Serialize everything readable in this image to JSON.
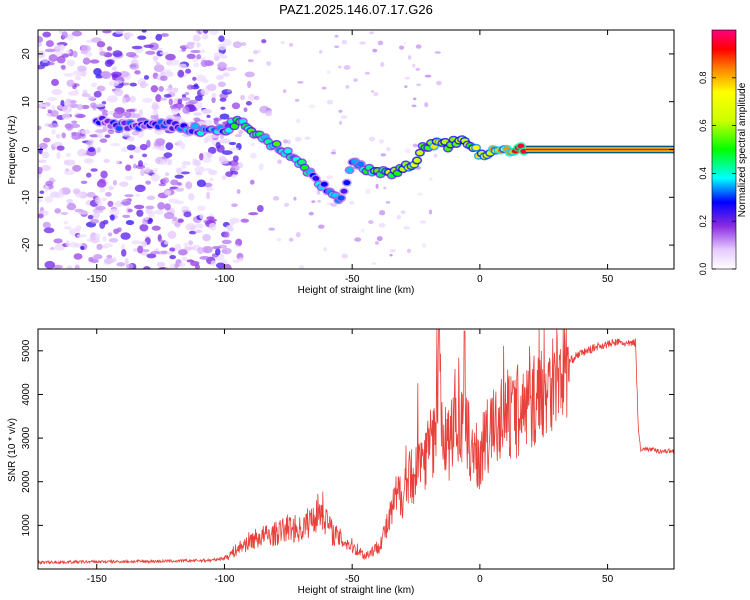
{
  "title": "PAZ1.2025.146.07.17.G26",
  "chart_data": [
    {
      "type": "heatmap",
      "xlabel": "Height of straight line (km)",
      "ylabel": "Frequency (Hz)",
      "xlim": [
        -173,
        76
      ],
      "ylim": [
        -25,
        25
      ],
      "xticks": [
        -150,
        -100,
        -50,
        0,
        50
      ],
      "yticks": [
        -20,
        -10,
        0,
        10,
        20
      ],
      "colorbar": {
        "label": "Normalized spectral amplitude",
        "range": [
          0,
          1
        ],
        "ticks": [
          0.0,
          0.2,
          0.4,
          0.6,
          0.8
        ],
        "tick_labels": [
          "0.0",
          "0.2",
          "0.4",
          "0.6",
          "0.8"
        ]
      },
      "ridge": [
        [
          -150,
          6,
          0.2
        ],
        [
          -140,
          5,
          0.22
        ],
        [
          -130,
          5,
          0.25
        ],
        [
          -120,
          5,
          0.28
        ],
        [
          -110,
          4,
          0.3
        ],
        [
          -100,
          4,
          0.35
        ],
        [
          -95,
          6,
          0.45
        ],
        [
          -90,
          4,
          0.45
        ],
        [
          -85,
          2,
          0.42
        ],
        [
          -80,
          1,
          0.45
        ],
        [
          -75,
          -1,
          0.4
        ],
        [
          -70,
          -3,
          0.45
        ],
        [
          -65,
          -6,
          0.35
        ],
        [
          -60,
          -8,
          0.32
        ],
        [
          -55,
          -11,
          0.28
        ],
        [
          -50,
          -3,
          0.35
        ],
        [
          -45,
          -4,
          0.45
        ],
        [
          -40,
          -5,
          0.5
        ],
        [
          -35,
          -5,
          0.55
        ],
        [
          -30,
          -4,
          0.6
        ],
        [
          -25,
          -3,
          0.7
        ],
        [
          -22,
          1,
          0.55
        ],
        [
          -18,
          1,
          0.7
        ],
        [
          -12,
          1,
          0.6
        ],
        [
          -8,
          2,
          0.55
        ],
        [
          -4,
          1,
          0.6
        ],
        [
          0,
          -1,
          0.7
        ],
        [
          5,
          0,
          0.75
        ],
        [
          10,
          0,
          0.8
        ],
        [
          15,
          0,
          0.9
        ],
        [
          20,
          0,
          0.95
        ],
        [
          30,
          0,
          0.98
        ],
        [
          45,
          0,
          0.98
        ],
        [
          60,
          0,
          0.98
        ],
        [
          76,
          0,
          0.98
        ]
      ]
    },
    {
      "type": "line",
      "xlabel": "Height of straight line (km)",
      "ylabel": "SNR (10 * v/v)",
      "xlim": [
        -173,
        76
      ],
      "ylim": [
        0,
        5500
      ],
      "xticks": [
        -150,
        -100,
        -50,
        0,
        50
      ],
      "yticks": [
        1000,
        2000,
        3000,
        4000,
        5000
      ],
      "series": [
        {
          "color": "#e8403a",
          "x": [
            -173,
            -160,
            -140,
            -120,
            -105,
            -100,
            -95,
            -90,
            -85,
            -80,
            -75,
            -70,
            -65,
            -62,
            -58,
            -55,
            -52,
            -48,
            -45,
            -40,
            -36,
            -33,
            -30,
            -26,
            -22,
            -18,
            -16,
            -14,
            -12,
            -10,
            -7,
            -4,
            -1,
            2,
            6,
            10,
            14,
            18,
            22,
            26,
            30,
            34,
            38,
            42,
            46,
            50,
            54,
            58,
            61,
            62,
            63,
            66,
            70,
            76
          ],
          "y": [
            150,
            160,
            170,
            180,
            200,
            250,
            450,
            650,
            750,
            800,
            950,
            900,
            1200,
            1400,
            850,
            700,
            600,
            450,
            300,
            500,
            1000,
            1600,
            1800,
            2200,
            2600,
            3000,
            4200,
            3000,
            2800,
            3600,
            3200,
            2900,
            2500,
            2900,
            3300,
            3500,
            3500,
            3700,
            3900,
            4200,
            4500,
            4700,
            4900,
            5000,
            5100,
            5150,
            5200,
            5150,
            5200,
            3200,
            2750,
            2750,
            2700,
            2700
          ]
        }
      ]
    }
  ]
}
